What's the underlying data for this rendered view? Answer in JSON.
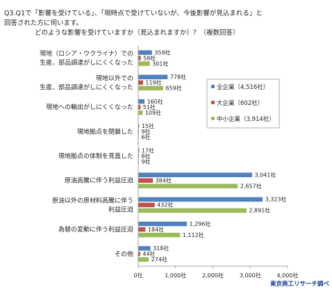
{
  "question": {
    "line1": "Q3.Q1で「影響を受けている」、「現時点で受けていないが、今後影響が見込まれる」と",
    "line2": "回答された方に伺います。",
    "line3": "どのような影響を受けていますか（見込まれますか）？（複数回答）"
  },
  "source": "東京商工リサーチ調べ",
  "colors": {
    "all": "#4f81bd",
    "large": "#c0504d",
    "sme": "#9bbb59"
  },
  "chart_data": {
    "type": "bar",
    "orientation": "horizontal",
    "categories": [
      [
        "現地（ロシア・ウクライナ）での",
        "生産、部品調達がしにくくなった"
      ],
      [
        "現地以外での",
        "生産、部品調達がしにくくなった"
      ],
      [
        "現地への輸出がしにくくなった"
      ],
      [
        "現地拠点を閉鎖した"
      ],
      [
        "現地拠点の体制を見直した"
      ],
      [
        "原油高騰に伴う利益圧迫"
      ],
      [
        "原油以外の原材料高騰に伴う",
        "利益圧迫"
      ],
      [
        "為替の変動に伴う利益圧迫"
      ],
      [
        "その他"
      ]
    ],
    "series": [
      {
        "name": "全企業（4,516社）",
        "values": [
          359,
          778,
          160,
          15,
          17,
          3041,
          3323,
          1296,
          318
        ],
        "labels": [
          "359社",
          "778社",
          "160社",
          "15社",
          "17社",
          "3,041社",
          "3,323社",
          "1,296社",
          "318社"
        ]
      },
      {
        "name": "大企業（602社）",
        "values": [
          58,
          119,
          51,
          9,
          8,
          384,
          432,
          184,
          44
        ],
        "labels": [
          "58社",
          "119社",
          "51社",
          "9社",
          "8社",
          "384社",
          "432社",
          "184社",
          "44社"
        ]
      },
      {
        "name": "中小企業（3,914社）",
        "values": [
          301,
          659,
          109,
          6,
          9,
          2657,
          2891,
          1112,
          274
        ],
        "labels": [
          "301社",
          "659社",
          "109社",
          "6社",
          "9社",
          "2,657社",
          "2,891社",
          "1,112社",
          "274社"
        ]
      }
    ],
    "xlim": [
      0,
      4000
    ],
    "xticks": [
      0,
      1000,
      2000,
      3000,
      4000
    ],
    "xtick_labels": [
      "0社",
      "1,000社",
      "2,000社",
      "3,000社",
      "4,000社"
    ],
    "legend_position": "right"
  }
}
